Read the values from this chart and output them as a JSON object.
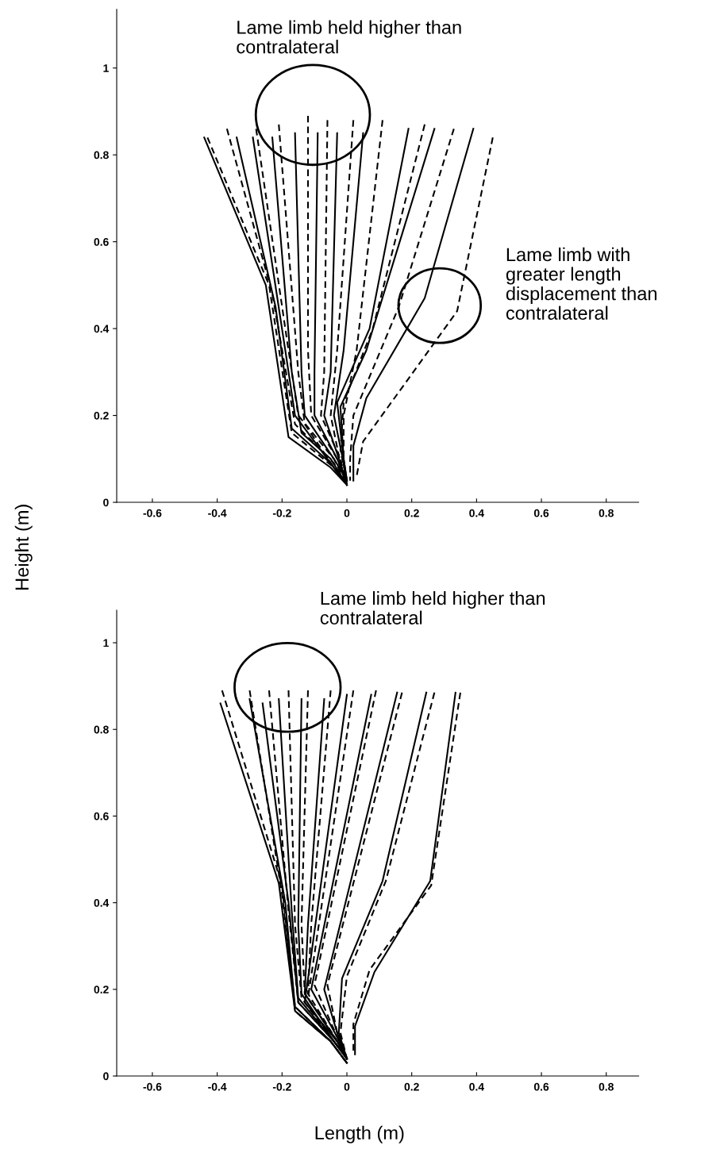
{
  "chart_data": [
    {
      "type": "line",
      "ylabel": "Height (m)",
      "xlim": [
        -0.71,
        0.9
      ],
      "ylim": [
        0,
        1.135
      ],
      "xticks": [
        -0.6,
        -0.4,
        -0.2,
        0,
        0.2,
        0.4,
        0.6,
        0.8
      ],
      "yticks": [
        0,
        0.2,
        0.4,
        0.6,
        0.8,
        1
      ],
      "grid": false,
      "marker": "none",
      "annotations": [
        "Lame limb held higher than\ncontralateral",
        "Lame limb with\ngreater length\ndisplacement than\ncontralateral"
      ],
      "series": [
        {
          "color": "#000000",
          "line_style": "solid",
          "x": [
            -0.44,
            -0.25,
            -0.18,
            -0.05,
            0
          ],
          "values": [
            0.84,
            0.5,
            0.15,
            0.08,
            0.04
          ]
        },
        {
          "color": "#000000",
          "line_style": "dashed",
          "x": [
            -0.43,
            -0.24,
            -0.17,
            -0.04,
            0
          ],
          "values": [
            0.84,
            0.5,
            0.16,
            0.08,
            0.04
          ]
        },
        {
          "color": "#000000",
          "line_style": "dashed",
          "x": [
            -0.37,
            -0.23,
            -0.16,
            -0.04,
            0
          ],
          "values": [
            0.86,
            0.48,
            0.18,
            0.09,
            0.04
          ]
        },
        {
          "color": "#000000",
          "line_style": "solid",
          "x": [
            -0.34,
            -0.22,
            -0.17,
            -0.05,
            -0.01
          ],
          "values": [
            0.84,
            0.45,
            0.17,
            0.09,
            0.05
          ]
        },
        {
          "color": "#000000",
          "line_style": "solid",
          "x": [
            -0.29,
            -0.19,
            -0.16,
            -0.06,
            -0.01
          ],
          "values": [
            0.84,
            0.35,
            0.2,
            0.1,
            0.05
          ]
        },
        {
          "color": "#000000",
          "line_style": "dashed",
          "x": [
            -0.28,
            -0.19,
            -0.15,
            -0.04,
            0
          ],
          "values": [
            0.86,
            0.4,
            0.2,
            0.1,
            0.04
          ]
        },
        {
          "color": "#000000",
          "line_style": "solid",
          "x": [
            -0.23,
            -0.17,
            -0.14,
            -0.05,
            0
          ],
          "values": [
            0.84,
            0.3,
            0.16,
            0.1,
            0.04
          ]
        },
        {
          "color": "#000000",
          "line_style": "dashed",
          "x": [
            -0.21,
            -0.15,
            -0.13,
            -0.04,
            0
          ],
          "values": [
            0.87,
            0.3,
            0.18,
            0.08,
            0.04
          ]
        },
        {
          "color": "#000000",
          "line_style": "solid",
          "x": [
            -0.16,
            -0.14,
            -0.13,
            -0.04,
            0
          ],
          "values": [
            0.85,
            0.3,
            0.2,
            0.1,
            0.05
          ]
        },
        {
          "color": "#000000",
          "line_style": "dashed",
          "x": [
            -0.12,
            -0.12,
            -0.11,
            -0.03,
            0
          ],
          "values": [
            0.89,
            0.35,
            0.2,
            0.1,
            0.04
          ]
        },
        {
          "color": "#000000",
          "line_style": "solid",
          "x": [
            -0.09,
            -0.1,
            -0.1,
            -0.03,
            0
          ],
          "values": [
            0.85,
            0.3,
            0.2,
            0.1,
            0.05
          ]
        },
        {
          "color": "#000000",
          "line_style": "dashed",
          "x": [
            -0.06,
            -0.07,
            -0.08,
            -0.02,
            0
          ],
          "values": [
            0.88,
            0.3,
            0.2,
            0.1,
            0.04
          ]
        },
        {
          "color": "#000000",
          "line_style": "solid",
          "x": [
            -0.03,
            -0.05,
            -0.07,
            -0.02,
            0
          ],
          "values": [
            0.85,
            0.3,
            0.2,
            0.09,
            0.04
          ]
        },
        {
          "color": "#000000",
          "line_style": "dashed",
          "x": [
            0.02,
            -0.03,
            -0.05,
            -0.02,
            0
          ],
          "values": [
            0.88,
            0.35,
            0.2,
            0.09,
            0.04
          ]
        },
        {
          "color": "#000000",
          "line_style": "solid",
          "x": [
            0.05,
            -0.01,
            -0.04,
            -0.01,
            0
          ],
          "values": [
            0.85,
            0.35,
            0.2,
            0.09,
            0.04
          ]
        },
        {
          "color": "#000000",
          "line_style": "dashed",
          "x": [
            0.11,
            0.03,
            -0.01,
            -0.01,
            0
          ],
          "values": [
            0.88,
            0.35,
            0.2,
            0.09,
            0.04
          ]
        },
        {
          "color": "#000000",
          "line_style": "solid",
          "x": [
            0.19,
            0.07,
            -0.03,
            -0.01,
            0
          ],
          "values": [
            0.86,
            0.4,
            0.23,
            0.1,
            0.05
          ]
        },
        {
          "color": "#000000",
          "line_style": "dashed",
          "x": [
            0.24,
            0.08,
            -0.01,
            -0.02,
            0
          ],
          "values": [
            0.87,
            0.4,
            0.23,
            0.12,
            0.05
          ]
        },
        {
          "color": "#000000",
          "line_style": "solid",
          "x": [
            0.27,
            0.06,
            -0.02,
            -0.01,
            0
          ],
          "values": [
            0.86,
            0.35,
            0.22,
            0.1,
            0.05
          ]
        },
        {
          "color": "#000000",
          "line_style": "dashed",
          "x": [
            0.33,
            0.16,
            0.02,
            0.01,
            0.01
          ],
          "values": [
            0.86,
            0.45,
            0.2,
            0.1,
            0.05
          ]
        },
        {
          "color": "#000000",
          "line_style": "solid",
          "x": [
            0.39,
            0.24,
            0.06,
            0.02,
            0.02
          ],
          "values": [
            0.86,
            0.47,
            0.24,
            0.13,
            0.05
          ]
        },
        {
          "color": "#000000",
          "line_style": "dashed",
          "x": [
            0.45,
            0.34,
            0.05,
            0.03
          ],
          "values": [
            0.84,
            0.44,
            0.14,
            0.06
          ]
        }
      ]
    },
    {
      "type": "line",
      "xlabel": "Length (m)",
      "xlim": [
        -0.71,
        0.9
      ],
      "ylim": [
        0,
        1.075
      ],
      "xticks": [
        -0.6,
        -0.4,
        -0.2,
        0,
        0.2,
        0.4,
        0.6,
        0.8
      ],
      "yticks": [
        0,
        0.2,
        0.4,
        0.6,
        0.8,
        1
      ],
      "grid": false,
      "marker": "none",
      "annotations": [
        "Lame limb held higher than\ncontralateral"
      ],
      "series": [
        {
          "color": "#000000",
          "line_style": "solid",
          "x": [
            -0.39,
            -0.21,
            -0.16,
            -0.05,
            0
          ],
          "values": [
            0.86,
            0.445,
            0.15,
            0.08,
            0.03
          ]
        },
        {
          "color": "#000000",
          "line_style": "dashed",
          "x": [
            -0.385,
            -0.2,
            -0.16,
            -0.05,
            0
          ],
          "values": [
            0.89,
            0.44,
            0.15,
            0.08,
            0.03
          ]
        },
        {
          "color": "#000000",
          "line_style": "dashed",
          "x": [
            -0.3,
            -0.2,
            -0.16,
            -0.05,
            0
          ],
          "values": [
            0.89,
            0.42,
            0.16,
            0.08,
            0.03
          ]
        },
        {
          "color": "#000000",
          "line_style": "solid",
          "x": [
            -0.3,
            -0.19,
            -0.16,
            -0.05,
            0
          ],
          "values": [
            0.87,
            0.4,
            0.16,
            0.08,
            0.03
          ]
        },
        {
          "color": "#000000",
          "line_style": "solid",
          "x": [
            -0.26,
            -0.18,
            -0.15,
            -0.04,
            0
          ],
          "values": [
            0.86,
            0.4,
            0.17,
            0.08,
            0.04
          ]
        },
        {
          "color": "#000000",
          "line_style": "dashed",
          "x": [
            -0.24,
            -0.18,
            -0.15,
            -0.04,
            0
          ],
          "values": [
            0.89,
            0.38,
            0.17,
            0.08,
            0.04
          ]
        },
        {
          "color": "#000000",
          "line_style": "solid",
          "x": [
            -0.21,
            -0.17,
            -0.15,
            -0.04,
            0
          ],
          "values": [
            0.87,
            0.38,
            0.18,
            0.08,
            0.04
          ]
        },
        {
          "color": "#000000",
          "line_style": "dashed",
          "x": [
            -0.18,
            -0.16,
            -0.14,
            -0.04,
            0
          ],
          "values": [
            0.89,
            0.35,
            0.18,
            0.08,
            0.04
          ]
        },
        {
          "color": "#000000",
          "line_style": "solid",
          "x": [
            -0.14,
            -0.15,
            -0.14,
            -0.04,
            0
          ],
          "values": [
            0.87,
            0.35,
            0.19,
            0.08,
            0.04
          ]
        },
        {
          "color": "#000000",
          "line_style": "dashed",
          "x": [
            -0.12,
            -0.14,
            -0.13,
            -0.03,
            0
          ],
          "values": [
            0.89,
            0.35,
            0.19,
            0.08,
            0.04
          ]
        },
        {
          "color": "#000000",
          "line_style": "solid",
          "x": [
            -0.07,
            -0.12,
            -0.13,
            -0.03,
            0
          ],
          "values": [
            0.87,
            0.35,
            0.19,
            0.08,
            0.04
          ]
        },
        {
          "color": "#000000",
          "line_style": "dashed",
          "x": [
            -0.05,
            -0.11,
            -0.12,
            -0.03,
            0
          ],
          "values": [
            0.89,
            0.35,
            0.19,
            0.08,
            0.04
          ]
        },
        {
          "color": "#000000",
          "line_style": "solid",
          "x": [
            0.0,
            -0.13,
            -0.03,
            0
          ],
          "values": [
            0.88,
            0.17,
            0.08,
            0.04
          ]
        },
        {
          "color": "#000000",
          "line_style": "dashed",
          "x": [
            0.02,
            -0.12,
            -0.03,
            0
          ],
          "values": [
            0.89,
            0.18,
            0.08,
            0.04
          ]
        },
        {
          "color": "#000000",
          "line_style": "solid",
          "x": [
            0.075,
            -0.11,
            -0.03,
            0
          ],
          "values": [
            0.88,
            0.2,
            0.09,
            0.04
          ]
        },
        {
          "color": "#000000",
          "line_style": "dashed",
          "x": [
            0.09,
            -0.1,
            -0.03,
            0
          ],
          "values": [
            0.89,
            0.21,
            0.09,
            0.04
          ]
        },
        {
          "color": "#000000",
          "line_style": "solid",
          "x": [
            0.155,
            -0.07,
            -0.03,
            0
          ],
          "values": [
            0.885,
            0.2,
            0.1,
            0.04
          ]
        },
        {
          "color": "#000000",
          "line_style": "dashed",
          "x": [
            0.17,
            -0.06,
            -0.03,
            0
          ],
          "values": [
            0.885,
            0.21,
            0.1,
            0.04
          ]
        },
        {
          "color": "#000000",
          "line_style": "solid",
          "x": [
            0.245,
            0.11,
            -0.015,
            -0.025,
            0
          ],
          "values": [
            0.885,
            0.45,
            0.225,
            0.1,
            0.04
          ]
        },
        {
          "color": "#000000",
          "line_style": "dashed",
          "x": [
            0.27,
            0.12,
            0.0,
            -0.02,
            0
          ],
          "values": [
            0.885,
            0.45,
            0.23,
            0.1,
            0.04
          ]
        },
        {
          "color": "#000000",
          "line_style": "solid",
          "x": [
            0.335,
            0.257,
            0.085,
            0.025,
            0.025
          ],
          "values": [
            0.885,
            0.45,
            0.24,
            0.115,
            0.05
          ]
        },
        {
          "color": "#000000",
          "line_style": "dashed",
          "x": [
            0.35,
            0.26,
            0.07,
            0.02,
            0.02
          ],
          "values": [
            0.885,
            0.44,
            0.245,
            0.12,
            0.05
          ]
        }
      ]
    }
  ]
}
